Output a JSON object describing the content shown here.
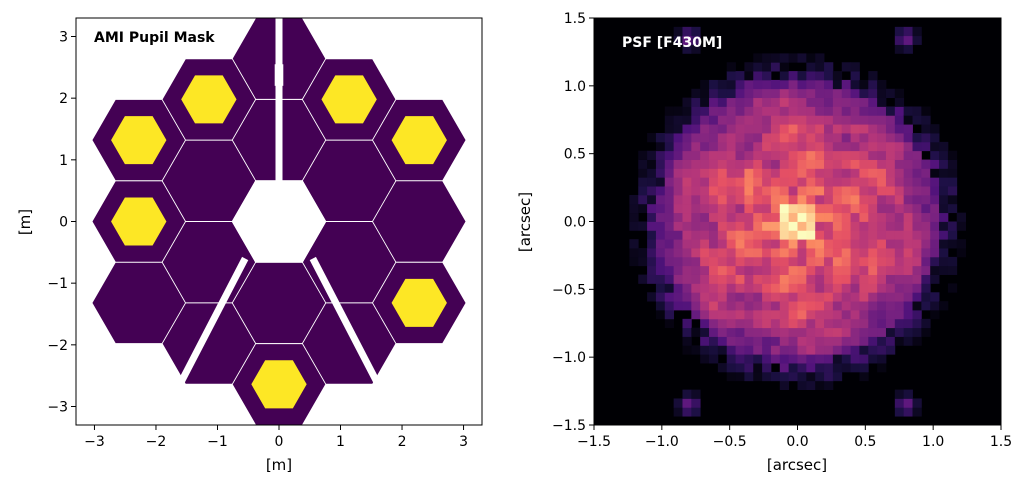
{
  "chart_data": [
    {
      "type": "heatmap",
      "title": "AMI Pupil Mask",
      "xlabel": "[m]",
      "ylabel": "[m]",
      "xlim": [
        -3.3,
        3.3
      ],
      "ylim": [
        -3.3,
        3.3
      ],
      "xticks": [
        -3,
        -2,
        -1,
        0,
        1,
        2,
        3
      ],
      "yticks": [
        -3,
        -2,
        -1,
        0,
        1,
        2,
        3
      ],
      "xtick_labels": [
        "−3",
        "−2",
        "−1",
        "0",
        "1",
        "2",
        "3"
      ],
      "ytick_labels": [
        "−3",
        "−2",
        "−1",
        "0",
        "1",
        "2",
        "3"
      ],
      "segment_circumradius": 0.76,
      "segment_centers": [
        [
          0,
          1.32
        ],
        [
          1.14,
          0.66
        ],
        [
          1.14,
          -0.66
        ],
        [
          0,
          -1.32
        ],
        [
          -1.14,
          -0.66
        ],
        [
          -1.14,
          0.66
        ],
        [
          0,
          2.64
        ],
        [
          1.14,
          1.98
        ],
        [
          2.28,
          1.32
        ],
        [
          2.28,
          0
        ],
        [
          2.28,
          -1.32
        ],
        [
          1.14,
          -1.98
        ],
        [
          0,
          -2.64
        ],
        [
          -1.14,
          -1.98
        ],
        [
          -2.28,
          -1.32
        ],
        [
          -2.28,
          0
        ],
        [
          -2.28,
          1.32
        ],
        [
          -1.14,
          1.98
        ]
      ],
      "hole_centers": [
        [
          -1.14,
          1.98
        ],
        [
          1.14,
          1.98
        ],
        [
          -2.28,
          1.32
        ],
        [
          2.28,
          1.32
        ],
        [
          -2.28,
          0
        ],
        [
          2.28,
          -1.32
        ],
        [
          0,
          -2.64
        ]
      ],
      "hole_circumradius": 0.45,
      "colors": {
        "mask": "#440154",
        "hole": "#fde725",
        "background": "#ffffff",
        "segment_edge": "#ffffff"
      }
    },
    {
      "type": "heatmap",
      "title": "PSF [F430M]",
      "xlabel": "[arcsec]",
      "ylabel": "[arcsec]",
      "xlim": [
        -1.5,
        1.5
      ],
      "ylim": [
        -1.5,
        1.5
      ],
      "xticks": [
        -1.5,
        -1.0,
        -0.5,
        0.0,
        0.5,
        1.0,
        1.5
      ],
      "yticks": [
        -1.5,
        -1.0,
        -0.5,
        0.0,
        0.5,
        1.0,
        1.5
      ],
      "xtick_labels": [
        "−1.5",
        "−1.0",
        "−0.5",
        "0.0",
        "0.5",
        "1.0",
        "1.5"
      ],
      "ytick_labels": [
        "−1.5",
        "−1.0",
        "−0.5",
        "0.0",
        "0.5",
        "1.0",
        "1.5"
      ],
      "grid_size": 46,
      "colormap": "magma",
      "peak_center": [
        0.0,
        0.0
      ],
      "core_radius_arcsec": 1.05,
      "satellite_spots": [
        [
          -0.8,
          1.35
        ],
        [
          0.8,
          1.35
        ],
        [
          -0.8,
          -1.35
        ],
        [
          0.8,
          -1.35
        ]
      ]
    }
  ]
}
